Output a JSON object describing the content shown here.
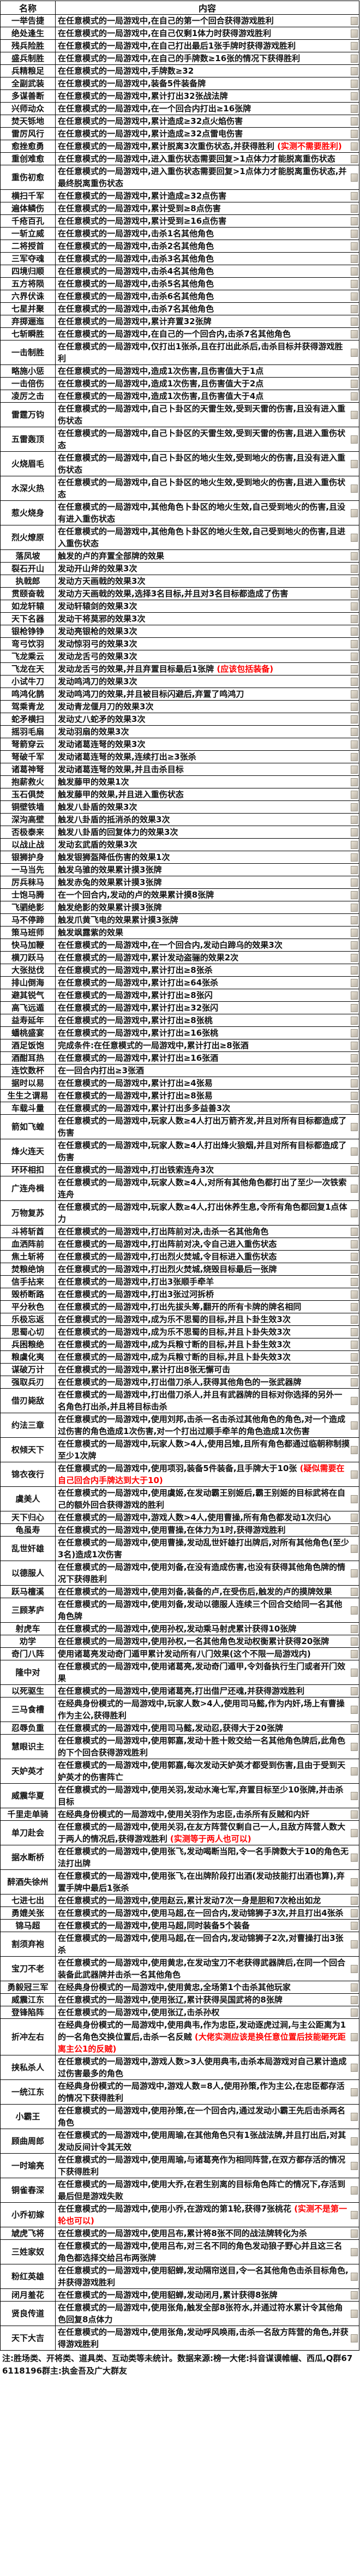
{
  "table": {
    "headers": [
      "名称",
      "内容"
    ],
    "rows": [
      {
        "name": "一举告捷",
        "content": "在任意模式的一局游戏中,在自己的第一个回合获得游戏胜利"
      },
      {
        "name": "绝处逢生",
        "content": "在任意模式的一局游戏中,在自己仅剩1体力时获得游戏胜利"
      },
      {
        "name": "残兵险胜",
        "content": "在任意模式的一局游戏中,在自己打出最后1张手牌时获得游戏胜利"
      },
      {
        "name": "盛兵制胜",
        "content": "在任意模式的一局游戏中,在自己的手牌数≥16张的情况下获得胜利"
      },
      {
        "name": "兵精粮足",
        "content": "在任意模式的一局游戏中,手牌数≥32"
      },
      {
        "name": "全副武装",
        "content": "在任意模式的一局游戏中,装备5件装备牌"
      },
      {
        "name": "多谋善断",
        "content": "在任意模式的一局游戏中,累计打出32张战法牌"
      },
      {
        "name": "兴师动众",
        "content": "在任意模式的一局游戏中,在一个回合内打出≥16张牌"
      },
      {
        "name": "焚天铄地",
        "content": "在任意模式的一局游戏中,累计造成≥32点火焰伤害"
      },
      {
        "name": "雷厉风行",
        "content": "在任意模式的一局游戏中,累计造成≥32点雷电伤害"
      },
      {
        "name": "愈挫愈勇",
        "content": "在任意模式的一局游戏中,累计脱离3次重伤状态,并获得胜利",
        "red": "(实测不需要胜利)"
      },
      {
        "name": "重创难愈",
        "content": "在任意模式的一局游戏中,进入重伤状态需要回复>1点体力才能脱离重伤状态"
      },
      {
        "name": "重伤初愈",
        "content": "在任意模式的一局游戏中,进入重伤状态需要回复>1点体力才能脱离重伤状态,并最终脱离重伤状态"
      },
      {
        "name": "横扫千军",
        "content": "在任意模式的一局游戏中,累计造成≥32点伤害"
      },
      {
        "name": "遍体鳞伤",
        "content": "在任意模式的一局游戏中,累计受到≥8点伤害"
      },
      {
        "name": "千疮百孔",
        "content": "在任意模式的一局游戏中,累计受到≥16点伤害"
      },
      {
        "name": "一斩立威",
        "content": "在任意模式的一局游戏中,击杀1名其他角色"
      },
      {
        "name": "二将授首",
        "content": "在任意模式的一局游戏中,击杀2名其他角色"
      },
      {
        "name": "三军夺魂",
        "content": "在任意模式的一局游戏中,击杀3名其他角色"
      },
      {
        "name": "四境归顺",
        "content": "在任意模式的一局游戏中,击杀4名其他角色"
      },
      {
        "name": "五方将陨",
        "content": "在任意模式的一局游戏中,击杀5名其他角色"
      },
      {
        "name": "六界伏诛",
        "content": "在任意模式的一局游戏中,击杀6名其他角色"
      },
      {
        "name": "七星并聚",
        "content": "在任意模式的一局游戏中,击杀7名其他角色"
      },
      {
        "name": "弃掷逦迤",
        "content": "在任意模式的一局游戏中,累计弃置32张牌"
      },
      {
        "name": "七斩瞬胜",
        "content": "在任意模式的一局游戏中,在自己的一个回合内,击杀7名其他角色"
      },
      {
        "name": "一击制胜",
        "content": "在任意模式的一局游戏中,仅打出1张杀,且在打出此杀后,击杀目标并获得游戏胜利"
      },
      {
        "name": "略施小惩",
        "content": "在任意模式的一局游戏中,造成1次伤害,且伤害值大于1点"
      },
      {
        "name": "一击倍伤",
        "content": "在任意模式的一局游戏中,造成1次伤害,且伤害值大于2点"
      },
      {
        "name": "凌厉之击",
        "content": "在任意模式的一局游戏中,造成1次伤害,且伤害值大于4点"
      },
      {
        "name": "雷霆万钧",
        "content": "在任意模式的一局游戏中,自己卜卦区的天雷生效,受到天雷的伤害,且没有进入重伤状态"
      },
      {
        "name": "五雷轰顶",
        "content": "在任意模式的一局游戏中,自己卜卦区的天雷生效,受到天雷的伤害,且进入重伤状态"
      },
      {
        "name": "火烧眉毛",
        "content": "在任意模式的一局游戏中,自己卜卦区的地火生效,受到地火的伤害,且没有进入重伤状态"
      },
      {
        "name": "水深火热",
        "content": "在任意模式的一局游戏中,自己卜卦区的地火生效,受到地火的伤害,且进入重伤状态"
      },
      {
        "name": "惹火烧身",
        "content": "在任意模式的一局游戏中,其他角色卜卦区的地火生效,自己受到地火的伤害,且没有进入重伤状态"
      },
      {
        "name": "烈火燎原",
        "content": "在任意模式的一局游戏中,其他角色卜卦区的地火生效,自己受到地火的伤害,且进入重伤状态"
      },
      {
        "name": "落凤坡",
        "content": "触发的卢的弃置全部牌的效果"
      },
      {
        "name": "裂石开山",
        "content": "发动开山斧的效果3次"
      },
      {
        "name": "执戟郎",
        "content": "发动方天画戟的效果3次"
      },
      {
        "name": "贯颐奋戟",
        "content": "发动方天画戟的效果,选择3名目标,并且对3名目标都造成了伤害"
      },
      {
        "name": "如龙轩辕",
        "content": "发动轩辕剑的效果3次"
      },
      {
        "name": "天下名器",
        "content": "发动干将莫邪的效果3次"
      },
      {
        "name": "银枪铮铮",
        "content": "发动亮银枪的效果3次"
      },
      {
        "name": "弯弓饮羽",
        "content": "发动惊羽弓的效果3次"
      },
      {
        "name": "飞龙乘云",
        "content": "发动龙舌弓的效果3次"
      },
      {
        "name": "飞龙在天",
        "content": "发动龙舌弓的效果,并且弃置目标最后1张牌",
        "red": "(应该包括装备)"
      },
      {
        "name": "小试牛刀",
        "content": "发动鸣鸿刀的效果3次"
      },
      {
        "name": "鸣鸿化鹊",
        "content": "发动鸣鸿刀的效果,并且被目标闪避后,弃置了鸣鸿刀"
      },
      {
        "name": "驾乘青龙",
        "content": "发动青龙偃月刀的效果3次"
      },
      {
        "name": "蛇矛横扫",
        "content": "发动丈八蛇矛的效果3次"
      },
      {
        "name": "摇羽毛扇",
        "content": "发动羽扇的效果3次"
      },
      {
        "name": "弩箭穿云",
        "content": "发动诸葛连弩的效果3次"
      },
      {
        "name": "弩破千军",
        "content": "发动诸葛连弩的效果,连续打出≥3张杀"
      },
      {
        "name": "诸葛神弩",
        "content": "发动诸葛连弩的效果,并且击杀目标"
      },
      {
        "name": "抱薪救火",
        "content": "触发藤甲的效果1次"
      },
      {
        "name": "玉石俱焚",
        "content": "触发藤甲的效果,并且进入重伤状态"
      },
      {
        "name": "铜壁铁墙",
        "content": "触发八卦盾的效果3次"
      },
      {
        "name": "深沟高壁",
        "content": "触发八卦盾的抵消杀的效果3次"
      },
      {
        "name": "否极泰来",
        "content": "触发八卦盾的回复体力的效果3次"
      },
      {
        "name": "以战止战",
        "content": "发动玄武盾的效果3次"
      },
      {
        "name": "银狮护身",
        "content": "触发银狮盔降低伤害的效果1次"
      },
      {
        "name": "一马当先",
        "content": "触发乌骓的效果累计摸3张牌"
      },
      {
        "name": "厉兵秣马",
        "content": "触发赤兔的效果累计摸3张牌"
      },
      {
        "name": "士饱马腾",
        "content": "在一个回合内,发动的卢的效果累计摸8张牌"
      },
      {
        "name": "飞驷绝影",
        "content": "触发绝影的效果累计摸3张牌"
      },
      {
        "name": "马不停蹄",
        "content": "触发爪黄飞电的效果累计摸3张牌"
      },
      {
        "name": "策马班师",
        "content": "触发飒露紫的效果"
      },
      {
        "name": "快马加鞭",
        "content": "在任意模式的一局游戏中,在一个回合内,发动白蹄乌的效果3次"
      },
      {
        "name": "横刀跃马",
        "content": "在任意模式的一局游戏中,累计发动盗骊的效果2次"
      },
      {
        "name": "大张挞伐",
        "content": "在任意模式的一局游戏中,累计打出≥8张杀"
      },
      {
        "name": "排山倒海",
        "content": "在任意模式的一局游戏中,累计打出≥64张杀"
      },
      {
        "name": "避其锐气",
        "content": "在任意模式的一局游戏中,累计打出≥8张闪"
      },
      {
        "name": "高飞远遁",
        "content": "在任意模式的一局游戏中,累计打出≥32张闪"
      },
      {
        "name": "益寿延年",
        "content": "在任意模式的一局游戏中,累计打出≥8张桃"
      },
      {
        "name": "蟠桃盛宴",
        "content": "在任意模式的一局游戏中,累计打出≥16张桃"
      },
      {
        "name": "酒足饭饱",
        "content": "完成条件:在任意模式的一局游戏中,累计打出≥8张酒"
      },
      {
        "name": "酒酣耳热",
        "content": "在任意模式的一局游戏中,累计打出≥16张酒"
      },
      {
        "name": "连饮数杯",
        "content": "在一回合内打出≥3张酒"
      },
      {
        "name": "据时以易",
        "content": "在任意模式的一局游戏中,累计打出≥4张易"
      },
      {
        "name": "生生之谓易",
        "content": "在任意模式的一局游戏中,累计打出≥8张易"
      },
      {
        "name": "车载斗量",
        "content": "在任意模式的一局游戏中,累计打出多多益善3次"
      },
      {
        "name": "箭如飞蝗",
        "content": "在任意模式的一局游戏中,玩家人数≥4人打出万箭齐发,并且对所有目标都造成了伤害"
      },
      {
        "name": "烽火连天",
        "content": "在任意模式的一局游戏中,玩家人数≥4人打出烽火狼烟,并且对所有目标都造成了伤害"
      },
      {
        "name": "环环相扣",
        "content": "在任意模式的一局游戏中,打出铁索连舟3次"
      },
      {
        "name": "广连舟楫",
        "content": "在任意模式的一局游戏中,玩家人数≥4人,对所有其他角色都打出了至少一次铁索连舟"
      },
      {
        "name": "万物复苏",
        "content": "在任意模式的一局游戏中,玩家人数≥4人,打出休养生息,令所有角色都回复1点体力"
      },
      {
        "name": "斗将斩酋",
        "content": "在任意模式的一局游戏中,打出阵前对决,击杀一名其他角色"
      },
      {
        "name": "血洒阵前",
        "content": "在任意模式的一局游戏中,打出阵前对决,令自己进入重伤状态"
      },
      {
        "name": "焦土斩将",
        "content": "在任意模式的一局游戏中,打出烈火焚城,令目标进入重伤状态"
      },
      {
        "name": "焚粮绝饷",
        "content": "在任意模式的一局游戏中,打出烈火焚城,烧毁目标最后一张牌"
      },
      {
        "name": "信手拈来",
        "content": "在任意模式的一局游戏中,打出3张顺手牵羊"
      },
      {
        "name": "毁桥断路",
        "content": "在任意模式的一局游戏中,打出3张过河拆桥"
      },
      {
        "name": "平分秋色",
        "content": "在任意模式的一局游戏中,打出先拔头筹,翻开的所有卡牌的牌名相同"
      },
      {
        "name": "乐极忘返",
        "content": "在任意模式的一局游戏中,成为乐不思蜀的目标,并且卜卦生效3次"
      },
      {
        "name": "思蜀心切",
        "content": "在任意模式的一局游戏中,成为乐不思蜀的目标,并且卜卦失效3次"
      },
      {
        "name": "兵困粮绝",
        "content": "在任意模式的一局游戏中,成为兵粮寸断的目标,并且卜卦生效3次"
      },
      {
        "name": "粮虞化夷",
        "content": "在任意模式的一局游戏中,成为兵粮寸断的目标,并且卜卦失效3次"
      },
      {
        "name": "谋破万计",
        "content": "在任意模式的一局游戏中,累计打出8张无懈可击"
      },
      {
        "name": "强取兵刃",
        "content": "在任意模式的一局游戏中,打出借刀杀人,获得其他角色的一张武器牌"
      },
      {
        "name": "借刃毙敌",
        "content": "在任意模式的一局游戏中,打出借刀杀人,并且有武器牌的目标对你选择的另外一名角色打出杀,并且将目标击杀"
      },
      {
        "name": "约法三章",
        "content": "在任意模式的一局游戏中,使用刘邦,击杀一名击杀过其他角色的角色,对一个造成过伤害的角色造成1次伤害,对一个打出过顺手牵羊的角色造成1次伤害"
      },
      {
        "name": "权倾天下",
        "content": "在任意模式的一局游戏中,玩家人数>4人,使用吕雉,且所有角色都通过临朝称制摸至少1次牌"
      },
      {
        "name": "锦衣夜行",
        "content": "在任意模式的一局游戏中,使用项羽,装备5件装备,且手牌大于10张",
        "red": "(疑似需要在自己回合内手牌达到大于10)"
      },
      {
        "name": "虞美人",
        "content": "在任意模式的一局游戏中,使用虞姬,在发动霸王别姬后,霸王别姬的目标武将在自己的额外回合获得游戏的胜利"
      },
      {
        "name": "天下归心",
        "content": "在任意模式的一局游戏中,游戏人数>4人,使用曹操,所有角色都发动1次归心"
      },
      {
        "name": "龟虽寿",
        "content": "在任意模式的一局游戏中,使用曹操,在体力为1时,获得游戏胜利"
      },
      {
        "name": "乱世奸雄",
        "content": "在任意模式的一局游戏中,使用曹操,发动乱世奸雄打出牌后,对所有其他角色(至少3名)造成1次伤害"
      },
      {
        "name": "以德服人",
        "content": "在任意模式的一局游戏中,使用刘备,在没有造成伤害,也没有获得其他角色牌的情况下获得胜利"
      },
      {
        "name": "跃马檀溪",
        "content": "在任意模式的一局游戏中,使用刘备,装备的卢,在受伤后,触发的卢的摸牌效果"
      },
      {
        "name": "三顾茅庐",
        "content": "在任意模式的一局游戏中,使用刘备,发动以德服人连续三个回合交给同一名其他角色牌"
      },
      {
        "name": "射虎车",
        "content": "在任意模式的一局游戏中,使用孙权,发动乘马射虎累计获得10张牌"
      },
      {
        "name": "劝学",
        "content": "在任意模式的一局游戏中,使用孙权,一名其他角色发动权衡累计获得20张牌"
      },
      {
        "name": "奇门八阵",
        "content": "使用诸葛亮发动奇门遁甲累计发动所有八门效果(这个不限一局游戏内)"
      },
      {
        "name": "隆中对",
        "content": "在任意模式的一局游戏中,使用诸葛亮,发动奇门遁甲,令刘备执行生门或者开门效果"
      },
      {
        "name": "以死驱生",
        "content": "在任意模式的一局游戏中,使用诸葛亮,打出借尸还魂,并获得游戏胜利"
      },
      {
        "name": "三马食槽",
        "content": "在经典身份模式的一局游戏中,玩家人数>4人,使用司马懿,作为内奸,场上有曹操作为主公,获得胜利"
      },
      {
        "name": "忍辱负重",
        "content": "在任意模式的一局游戏中,使用司马懿,发动忍,获得大于20张牌"
      },
      {
        "name": "慧眼识主",
        "content": "在任意模式的一局游戏中,使用郭嘉,发动十胜十败交给一名其他角色牌后,此角色的下个回合获得游戏胜利"
      },
      {
        "name": "天妒英才",
        "content": "在任意模式的一局游戏中,使用郭嘉,每次发动天妒英才都受到伤害,且由于受到天妒英才的伤害阵亡"
      },
      {
        "name": "威震华夏",
        "content": "在任意模式的一局游戏中,使用关羽,发动水淹七军,弃置目标至少10张牌,并击杀目标"
      },
      {
        "name": "千里走单骑",
        "content": "在经典身份模式的一局游戏中,使用关羽作为忠臣,击杀所有反贼和内奸"
      },
      {
        "name": "单刀赴会",
        "content": "在任意模式的一局游戏中,使用关羽,在友方阵营仅剩自己一人,且敌方阵营人数大于两人的情况后,获得游戏胜利",
        "red": "(实测等于两人也可以)"
      },
      {
        "name": "据水断桥",
        "content": "在任意模式的一局游戏中,使用张飞,发动喝断当阳,令一名手牌数大于10的角色无法打出牌"
      },
      {
        "name": "醉酒失徐州",
        "content": "在任意模式的一局游戏中,使用张飞,在出牌阶段打出酒(发动技能打出酒也算),弃置手牌中最后1张杀"
      },
      {
        "name": "七进七出",
        "content": "在任意模式的一局游戏中,使用赵云,累计发动7次一身是胆和7次枪出如龙"
      },
      {
        "name": "勇媲关张",
        "content": "在任意模式的一局游戏中,使用马超,在一回合内,发动锦狮子3次,并且打出4张杀"
      },
      {
        "name": "锦马超",
        "content": "在任意模式的一局游戏中,使用马超,同时装备5个装备"
      },
      {
        "name": "割须弃袍",
        "content": "在任意模式的一局游戏中,使用马超,在一回合内,发动锦狮子2次,对曹操打出3张杀"
      },
      {
        "name": "宝刀不老",
        "content": "在任意模式的一局游戏中,使用黄忠,在发动宝刀不老获得武器牌后,在同一个回合装备此武器牌并击杀一名其他角色"
      },
      {
        "name": "勇毅冠三军",
        "content": "在经典身份模式的一局游戏中,使用黄忠,全场第1个击杀其他玩家"
      },
      {
        "name": "威震江东",
        "content": "在任意模式的一局游戏中,使用张辽,累计获得吴国武将的8张牌"
      },
      {
        "name": "登锋陷阵",
        "content": "在任意模式的一局游戏中,使用张辽,击杀孙权"
      },
      {
        "name": "折冲左右",
        "content": "在经典身份模式的一局游戏中,使用典韦,作为忠臣,发动逐虎过涧,与主公距离为1的一名角色交换位置后,击杀一名反贼",
        "red": "(大佬实测应该是换任意位置后技能砸死距离主公1的反贼)"
      },
      {
        "name": "挟私杀人",
        "content": "在任意模式的一局游戏中,游戏人数>3人使用典韦,击杀本局游戏对自己累计造成过伤害最多的角色"
      },
      {
        "name": "一统江东",
        "content": "在经典身份模式的一局游戏中,游戏人数=8人,使用孙策,作为主公,在忠臣都存活的情况下获得胜利"
      },
      {
        "name": "小霸王",
        "content": "在任意模式的一局游戏中,使用孙策,在一个回合内,通过发动小霸王先后击杀两名角色"
      },
      {
        "name": "顾曲周郎",
        "content": "在任意模式的一局游戏中,使用周瑜,在其他角色只有1张战法牌,并且打出后,对其发动反间计令其无效"
      },
      {
        "name": "一时瑜亮",
        "content": "在任意模式的一局游戏中,使用周瑜,与诸葛亮作为相同阵营,在双方都存活的情况下获得胜利"
      },
      {
        "name": "铜雀春深",
        "content": "在任意模式的一局游戏中,使用大乔,在君生别离的目标角色阵亡的情况下,存活到最后但是游戏失败"
      },
      {
        "name": "小乔初嫁",
        "content": "在任意模式的一局游戏中,使用小乔,在游戏的第1轮,获得7张桃花",
        "red": "(实测不是第一轮也可以)"
      },
      {
        "name": "虓虎飞将",
        "content": "在任意模式的一局游戏中,使用吕布,累计将8张不同的战法牌转化为杀"
      },
      {
        "name": "三姓家奴",
        "content": "在任意模式的一局游戏中,使用吕布,对三名不同的角色发动狼子野心并且这三名角色都选择交给吕布两张牌"
      },
      {
        "name": "粉红英雄",
        "content": "在任意模式的一局游戏中,使用貂蝉,发动隔帘送目,令一名其他角色击杀目标角色,并获得游戏胜利"
      },
      {
        "name": "闭月羞花",
        "content": "在任意模式的一局游戏中,使用貂蝉,发动闭月,累计获得8张牌"
      },
      {
        "name": "贤良传道",
        "content": "在任意模式的一局游戏中,使用张角,触发全部8张符水,并通过符水累计令其他角色回复8点体力"
      },
      {
        "name": "天下大吉",
        "content": "在任意模式的一局游戏中,使用张角,发动呼风唤雨,击杀一名敌方阵营的角色,并获得游戏胜利"
      }
    ],
    "footer": "注:胜场类、开将类、道具类、互动类等未统计。数据来源:榜一大佬:抖音谋谟帷幄、西瓜,Q群676118196群主:执金吾及广大群友"
  },
  "colors": {
    "red_note": "#ff0000",
    "border": "#000000",
    "text": "#111111"
  }
}
